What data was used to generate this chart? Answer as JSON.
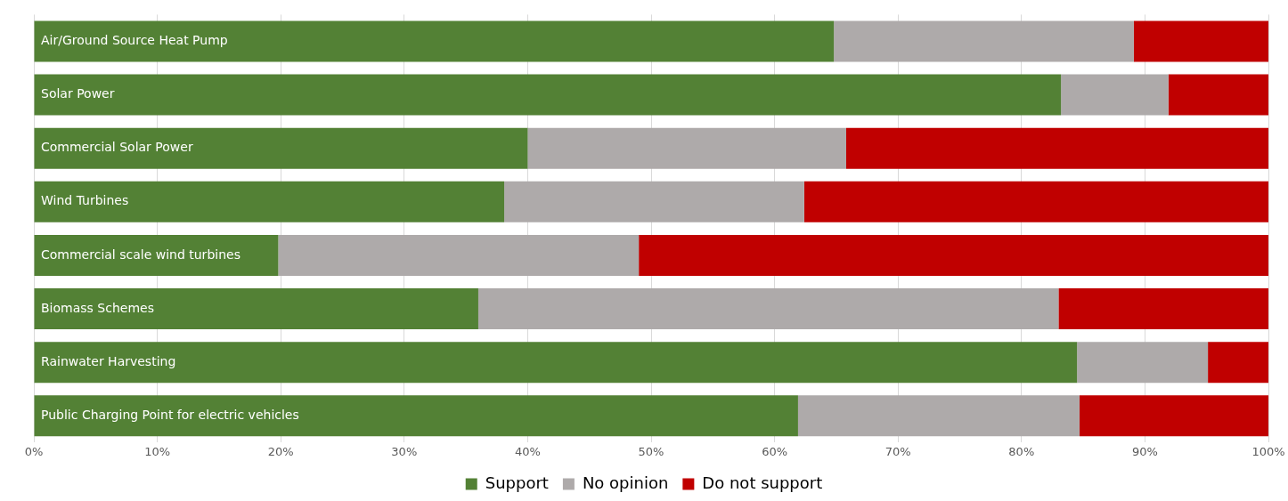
{
  "chart_data": {
    "type": "bar",
    "orientation": "horizontal",
    "stacked": true,
    "categories": [
      "Air/Ground Source Heat Pump",
      "Solar Power",
      "Commercial Solar Power",
      "Wind Turbines",
      "Commercial scale wind turbines",
      "Biomass Schemes",
      "Rainwater Harvesting",
      "Public Charging Point for electric vehicles"
    ],
    "series": [
      {
        "name": "Support",
        "color": "#538135",
        "values": [
          64.8,
          83.2,
          40.0,
          38.1,
          19.8,
          36.0,
          84.5,
          61.9
        ]
      },
      {
        "name": "No opinion",
        "color": "#aeaaaa",
        "values": [
          24.3,
          8.7,
          25.8,
          24.3,
          29.2,
          47.0,
          10.6,
          22.8
        ]
      },
      {
        "name": "Do not support",
        "color": "#c00000",
        "values": [
          10.9,
          8.1,
          34.2,
          37.6,
          51.0,
          17.0,
          4.9,
          15.3
        ]
      }
    ],
    "xlim": [
      0,
      100
    ],
    "xticks": [
      {
        "value": 0,
        "label": "0%"
      },
      {
        "value": 10,
        "label": "10%"
      },
      {
        "value": 20,
        "label": "20%"
      },
      {
        "value": 30,
        "label": "30%"
      },
      {
        "value": 40,
        "label": "40%"
      },
      {
        "value": 50,
        "label": "50%"
      },
      {
        "value": 60,
        "label": "60%"
      },
      {
        "value": 70,
        "label": "70%"
      },
      {
        "value": 80,
        "label": "80%"
      },
      {
        "value": 90,
        "label": "90%"
      },
      {
        "value": 100,
        "label": "100%"
      }
    ],
    "grid": "x",
    "legend": "bottom"
  }
}
